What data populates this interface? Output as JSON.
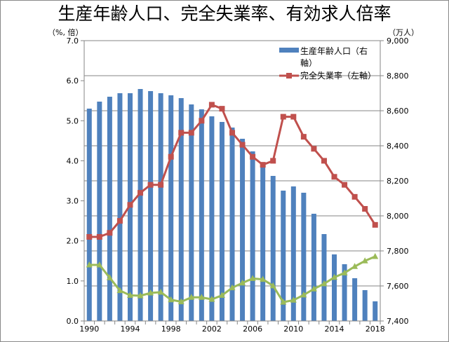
{
  "chart_data": {
    "type": "bar+line",
    "title": "生産年齢人口、完全失業率、有効求人倍率",
    "left_axis": {
      "label": "（%, 倍）",
      "range": [
        0,
        7
      ],
      "ticks": [
        "0.0",
        "1.0",
        "2.0",
        "3.0",
        "4.0",
        "5.0",
        "6.0",
        "7.0"
      ]
    },
    "right_axis": {
      "label": "（万人）",
      "range": [
        7400,
        9000
      ],
      "ticks": [
        "7,400",
        "7,600",
        "7,800",
        "8,000",
        "8,200",
        "8,400",
        "8,600",
        "8,800",
        "9,000"
      ]
    },
    "x": [
      1990,
      1991,
      1992,
      1993,
      1994,
      1995,
      1996,
      1997,
      1998,
      1999,
      2000,
      2001,
      2002,
      2003,
      2004,
      2005,
      2006,
      2007,
      2008,
      2009,
      2010,
      2011,
      2012,
      2013,
      2014,
      2015,
      2016,
      2017,
      2018
    ],
    "x_tick_labels": [
      "1990",
      "1994",
      "1998",
      "2002",
      "2006",
      "2010",
      "2014",
      "2018"
    ],
    "grid": "horizontal, right-axis ticks",
    "legend_position": "top-right",
    "series": [
      {
        "name": "生産年齢人口（右軸）",
        "type": "bar",
        "axis": "right",
        "color": "#4f81bd",
        "values": [
          8612,
          8652,
          8680,
          8700,
          8700,
          8724,
          8712,
          8700,
          8688,
          8672,
          8636,
          8608,
          8568,
          8536,
          8504,
          8440,
          8368,
          8292,
          8228,
          8144,
          8168,
          8132,
          8012,
          7896,
          7780,
          7724,
          7644,
          7576,
          7512
        ]
      },
      {
        "name": "完全失業率（左軸）",
        "type": "line",
        "axis": "left",
        "color": "#c0504d",
        "marker": "square",
        "values": [
          2.1,
          2.1,
          2.2,
          2.5,
          2.9,
          3.2,
          3.4,
          3.4,
          4.1,
          4.7,
          4.7,
          5.0,
          5.4,
          5.3,
          4.7,
          4.4,
          4.1,
          3.9,
          4.0,
          5.1,
          5.1,
          4.6,
          4.3,
          4.0,
          3.6,
          3.4,
          3.1,
          2.8,
          2.4
        ]
      },
      {
        "name": "有効求人倍率",
        "type": "line",
        "axis": "left",
        "color": "#9bbb59",
        "marker": "triangle",
        "in_legend": false,
        "values": [
          1.4,
          1.4,
          1.08,
          0.76,
          0.64,
          0.63,
          0.7,
          0.72,
          0.53,
          0.48,
          0.59,
          0.59,
          0.54,
          0.64,
          0.83,
          0.95,
          1.06,
          1.04,
          0.88,
          0.47,
          0.52,
          0.65,
          0.8,
          0.93,
          1.09,
          1.2,
          1.36,
          1.5,
          1.61
        ]
      }
    ],
    "legend": [
      "生産年齢人口（右",
      "軸）",
      "完全失業率（左軸）"
    ]
  }
}
